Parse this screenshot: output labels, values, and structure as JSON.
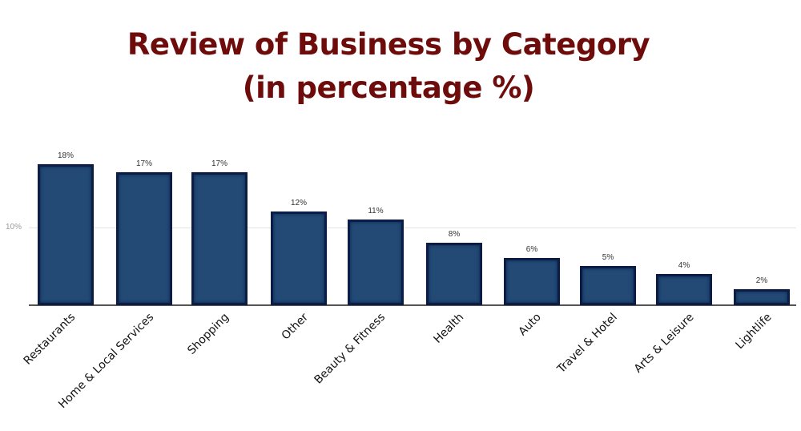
{
  "chart_data": {
    "type": "bar",
    "title": "Review of Business by Category",
    "subtitle": "(in percentage %)",
    "categories": [
      "Restaurants",
      "Home & Local Services",
      "Shopping",
      "Other",
      "Beauty & Fitness",
      "Health",
      "Auto",
      "Travel & Hotel",
      "Arts & Leisure",
      "Lightlife"
    ],
    "values": [
      18,
      17,
      17,
      12,
      11,
      8,
      6,
      5,
      4,
      2
    ],
    "value_labels": [
      "18%",
      "17%",
      "17%",
      "12%",
      "11%",
      "8%",
      "6%",
      "5%",
      "4%",
      "2%"
    ],
    "xlabel": "",
    "ylabel": "",
    "yticks": [
      "10%"
    ],
    "ylim": [
      0,
      20
    ],
    "grid": true,
    "legend": "none",
    "colors": {
      "bar_fill": "#224a75",
      "bar_border": "#0b1d44",
      "title": "#6e0c0c"
    }
  }
}
